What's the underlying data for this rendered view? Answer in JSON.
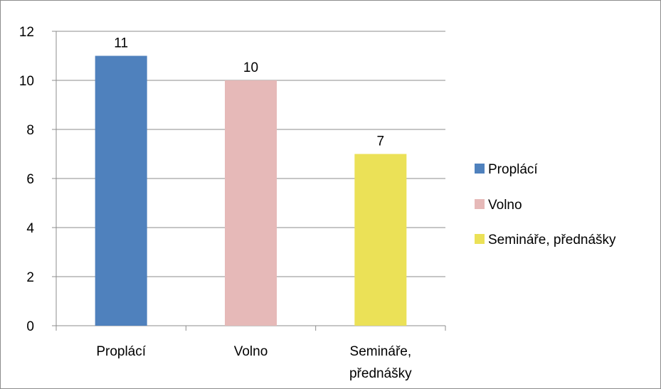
{
  "chart_data": {
    "type": "bar",
    "categories": [
      "Proplácí",
      "Volno",
      "Semináře, přednášky"
    ],
    "category_label_lines": [
      [
        "Proplácí"
      ],
      [
        "Volno"
      ],
      [
        "Semináře,",
        "přednášky"
      ]
    ],
    "values": [
      11,
      10,
      7
    ],
    "data_labels": [
      "11",
      "10",
      "7"
    ],
    "colors": [
      "#4f81bd",
      "#e6b9b8",
      "#ebe157"
    ],
    "ylim": [
      0,
      12
    ],
    "yticks": [
      0,
      2,
      4,
      6,
      8,
      10,
      12
    ],
    "grid": true,
    "legend": {
      "placement": "right",
      "entries": [
        {
          "label": "Proplácí",
          "color": "#4f81bd"
        },
        {
          "label": "Volno",
          "color": "#e6b9b8"
        },
        {
          "label": "Semináře, přednášky",
          "color": "#ebe157"
        }
      ]
    }
  }
}
